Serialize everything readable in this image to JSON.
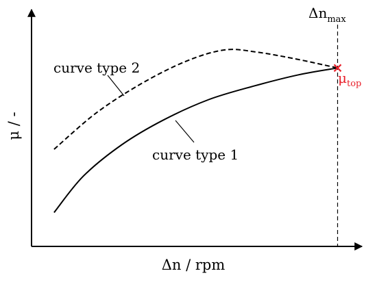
{
  "chart_data": {
    "type": "line",
    "title": "",
    "xlabel": "Δn / rpm",
    "ylabel": "μ / -",
    "xlim": [
      0,
      1
    ],
    "ylim": [
      0,
      1
    ],
    "grid": false,
    "axis_ticks": "none",
    "series": [
      {
        "name": "curve type 1",
        "style": "solid",
        "color": "#000000",
        "x": [
          0.07,
          0.16,
          0.28,
          0.41,
          0.55,
          0.69,
          0.83,
          0.95
        ],
        "y": [
          0.15,
          0.31,
          0.45,
          0.56,
          0.65,
          0.71,
          0.76,
          0.79
        ]
      },
      {
        "name": "curve type 2",
        "style": "dashed",
        "color": "#000000",
        "x": [
          0.07,
          0.2,
          0.34,
          0.48,
          0.6,
          0.7,
          0.82,
          0.95
        ],
        "y": [
          0.43,
          0.59,
          0.72,
          0.82,
          0.87,
          0.86,
          0.83,
          0.79
        ]
      }
    ],
    "annotations": [
      {
        "name": "n-max",
        "base": "Δn",
        "subscript": "max",
        "x": 0.95,
        "style": "dashed-vertical-line"
      },
      {
        "name": "mu-top",
        "base": "μ",
        "subscript": "top",
        "x": 0.95,
        "y": 0.79,
        "marker": "x",
        "color": "#e8202a"
      }
    ]
  }
}
